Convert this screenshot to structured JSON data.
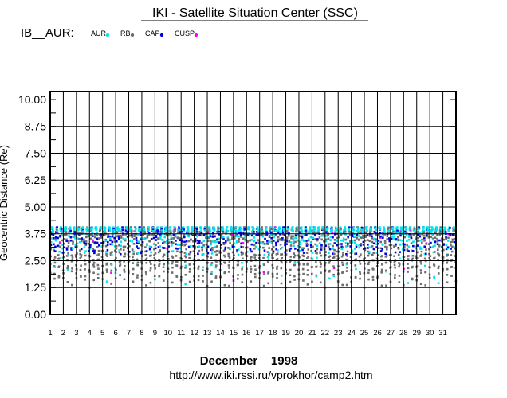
{
  "chart_data": {
    "type": "scatter",
    "title": "IKI - Satellite Situation Center (SSC)",
    "satellite_label": "IB__AUR:",
    "xlabel": "December    1998",
    "ylabel": "Geocentric Distance (Re)",
    "footer_url": "http://www.iki.rssi.ru/vprokhor/camp2.htm",
    "ylim": [
      0,
      10.37
    ],
    "xlim": [
      1,
      32
    ],
    "y_ticks": [
      "10.00",
      "8.75",
      "7.50",
      "6.25",
      "5.00",
      "3.75",
      "2.50",
      "1.25",
      "0.00"
    ],
    "y_tick_values": [
      10,
      8.75,
      7.5,
      6.25,
      5,
      3.75,
      2.5,
      1.25,
      0
    ],
    "x_ticks": [
      "1",
      "2",
      "3",
      "4",
      "5",
      "6",
      "7",
      "8",
      "9",
      "10",
      "11",
      "12",
      "13",
      "14",
      "15",
      "16",
      "17",
      "18",
      "19",
      "20",
      "21",
      "22",
      "23",
      "24",
      "25",
      "26",
      "27",
      "28",
      "29",
      "30",
      "31"
    ],
    "grid": true,
    "legend_position": "top-left",
    "series": [
      {
        "name": "AUR",
        "color": "#00e5ee",
        "range": [
          1.25,
          4.05
        ]
      },
      {
        "name": "RB",
        "color": "#6e6e6e",
        "range": [
          1.25,
          3.9
        ]
      },
      {
        "name": "CAP",
        "color": "#0000e0",
        "range": [
          2.8,
          4.0
        ]
      },
      {
        "name": "CUSP",
        "color": "#ff00ff",
        "range": [
          1.3,
          4.0
        ]
      }
    ],
    "orbit": {
      "perigee_re": 1.25,
      "apogee_re": 4.05,
      "orbits_per_day": 3
    }
  }
}
